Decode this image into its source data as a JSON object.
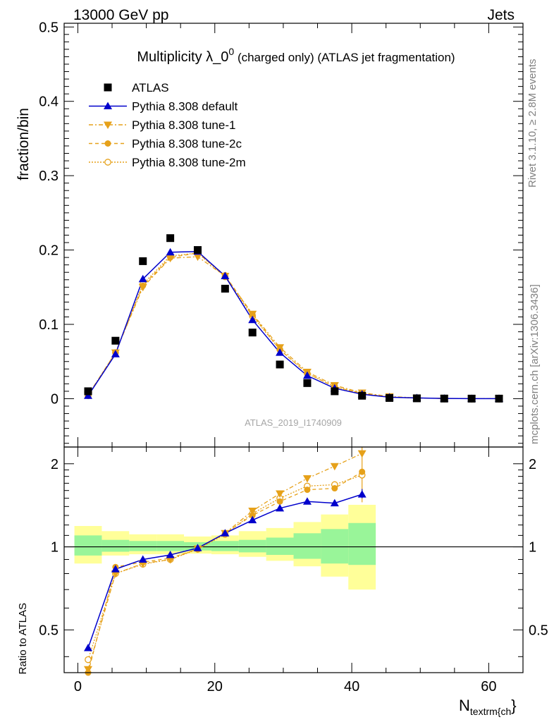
{
  "header": {
    "energy_label": "13000 GeV pp",
    "process_label": "Jets"
  },
  "side_labels": {
    "rivet": "Rivet 3.1.10, ≥ 2.8M events",
    "mcplots": "mcplots.cern.ch [arXiv:1306.3436]"
  },
  "colors": {
    "data": "#000000",
    "default": "#0000cc",
    "tunes": "#e6a11a",
    "band_inner": "#99f599",
    "band_outer": "#ffff99"
  },
  "chart_data": [
    {
      "type": "scatter",
      "title_main": "Multiplicity λ_0",
      "title_sup": "0",
      "title_rest": " (charged only) (ATLAS jet fragmentation)",
      "ylabel": "fraction/bin",
      "xlim": [
        -2,
        65
      ],
      "ylim": [
        -0.065,
        0.505
      ],
      "yticks": [
        0,
        0.1,
        0.2,
        0.3,
        0.4,
        0.5
      ],
      "ytick_labels": [
        "0",
        "0.1",
        "0.2",
        "0.3",
        "0.4",
        "0.5"
      ],
      "watermark": "ATLAS_2019_I1740909",
      "legend_position": "top-left",
      "x": [
        1.5,
        5.5,
        9.5,
        13.5,
        17.5,
        21.5,
        25.5,
        29.5,
        33.5,
        37.5,
        41.5,
        45.5,
        49.5,
        53.5,
        57.5,
        61.5
      ],
      "series": [
        {
          "name": "ATLAS",
          "style": "data",
          "values": [
            0.01,
            0.078,
            0.185,
            0.216,
            0.2,
            0.148,
            0.089,
            0.046,
            0.021,
            0.01,
            0.004,
            0.001,
            0.0005,
            0.0002,
            0.0001,
            0.0001
          ]
        },
        {
          "name": "Pythia 8.308 default",
          "style": "default",
          "values": [
            0.004,
            0.06,
            0.161,
            0.197,
            0.198,
            0.165,
            0.106,
            0.062,
            0.031,
            0.014,
            0.006,
            0.002,
            0.001,
            0.0003,
            0.0001,
            0.0001
          ]
        },
        {
          "name": "Pythia 8.308 tune-1",
          "style": "tune1",
          "values": [
            0.005,
            0.062,
            0.15,
            0.189,
            0.191,
            0.165,
            0.114,
            0.069,
            0.036,
            0.018,
            0.008,
            0.003,
            0.001,
            0.0003,
            0.0001,
            0.0001
          ]
        },
        {
          "name": "Pythia 8.308 tune-2c",
          "style": "tune2c",
          "values": [
            0.004,
            0.062,
            0.152,
            0.19,
            0.196,
            0.166,
            0.113,
            0.066,
            0.034,
            0.016,
            0.007,
            0.002,
            0.001,
            0.0003,
            0.0001,
            0.0001
          ]
        },
        {
          "name": "Pythia 8.308 tune-2m",
          "style": "tune2m",
          "values": [
            0.004,
            0.062,
            0.154,
            0.192,
            0.196,
            0.164,
            0.111,
            0.066,
            0.034,
            0.016,
            0.007,
            0.002,
            0.001,
            0.0003,
            0.0001,
            0.0001
          ]
        }
      ]
    },
    {
      "type": "line",
      "ylabel": "Ratio to ATLAS",
      "xlabel_main": "N",
      "xlabel_sub": "textrm{ch",
      "xlabel_close": "}",
      "xlim": [
        -2,
        65
      ],
      "ylim": [
        0.35,
        2.3
      ],
      "yscale": "log",
      "yticks": [
        0.5,
        1,
        2
      ],
      "ytick_labels": [
        "0.5",
        "1",
        "2"
      ],
      "xticks": [
        0,
        20,
        40,
        60
      ],
      "xtick_labels": [
        "0",
        "20",
        "40",
        "60"
      ],
      "band_edges": [
        -0.5,
        3.5,
        7.5,
        11.5,
        15.5,
        19.5,
        23.5,
        27.5,
        31.5,
        35.5,
        39.5,
        43.5
      ],
      "band_inner": [
        [
          0.93,
          1.1
        ],
        [
          0.96,
          1.06
        ],
        [
          0.965,
          1.05
        ],
        [
          0.965,
          1.05
        ],
        [
          0.97,
          1.04
        ],
        [
          0.965,
          1.05
        ],
        [
          0.955,
          1.06
        ],
        [
          0.935,
          1.08
        ],
        [
          0.905,
          1.12
        ],
        [
          0.87,
          1.16
        ],
        [
          0.86,
          1.22
        ]
      ],
      "band_outer": [
        [
          0.87,
          1.19
        ],
        [
          0.93,
          1.14
        ],
        [
          0.94,
          1.11
        ],
        [
          0.94,
          1.11
        ],
        [
          0.945,
          1.09
        ],
        [
          0.94,
          1.1
        ],
        [
          0.92,
          1.14
        ],
        [
          0.89,
          1.17
        ],
        [
          0.85,
          1.23
        ],
        [
          0.78,
          1.31
        ],
        [
          0.7,
          1.42
        ]
      ],
      "x": [
        1.5,
        5.5,
        9.5,
        13.5,
        17.5,
        21.5,
        25.5,
        29.5,
        33.5,
        37.5,
        41.5
      ],
      "series": [
        {
          "name": "Pythia 8.308 default",
          "style": "default",
          "values": [
            0.43,
            0.83,
            0.9,
            0.935,
            0.99,
            1.12,
            1.25,
            1.38,
            1.46,
            1.44,
            1.55
          ]
        },
        {
          "name": "Pythia 8.308 tune-1",
          "style": "tune1",
          "values": [
            0.36,
            0.8,
            0.87,
            0.9,
            0.985,
            1.12,
            1.35,
            1.56,
            1.77,
            1.96,
            2.18
          ]
        },
        {
          "name": "Pythia 8.308 tune-2c",
          "style": "tune2c",
          "values": [
            0.35,
            0.845,
            0.88,
            0.91,
            0.98,
            1.12,
            1.3,
            1.46,
            1.61,
            1.63,
            1.87
          ]
        },
        {
          "name": "Pythia 8.308 tune-2m",
          "style": "tune2m",
          "values": [
            0.39,
            0.8,
            0.865,
            0.9,
            0.98,
            1.11,
            1.32,
            1.5,
            1.66,
            1.68,
            1.82
          ]
        }
      ]
    }
  ]
}
